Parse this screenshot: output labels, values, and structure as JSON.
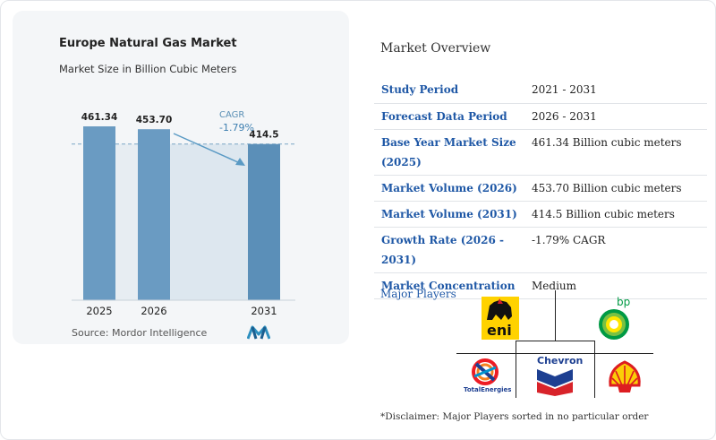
{
  "chart_data": {
    "type": "bar",
    "title": "Europe Natural Gas Market",
    "subtitle": "Market Size in Billion Cubic Meters",
    "categories": [
      "2025",
      "2026",
      "2031"
    ],
    "values": [
      461.34,
      453.7,
      414.5
    ],
    "value_labels": [
      "461.34",
      "453.70",
      "414.5"
    ],
    "ylim": [
      0,
      500
    ],
    "annotation": {
      "label": "CAGR",
      "value": "-1.79%"
    },
    "grid": false,
    "colors": {
      "bar": "#5b8fb8",
      "bar_light": "#6a9bc2",
      "shade": "#dde7ef",
      "arrow": "#5a9ac4"
    }
  },
  "source": "Source: Mordor Intelligence",
  "overview": {
    "heading": "Market Overview",
    "rows": [
      {
        "label": "Study Period",
        "value": "2021 - 2031"
      },
      {
        "label": "Forecast Data Period",
        "value": "2026 - 2031"
      },
      {
        "label": "Base Year Market Size (2025)",
        "value": "461.34 Billion cubic meters"
      },
      {
        "label": "Market Volume (2026)",
        "value": "453.70 Billion cubic meters"
      },
      {
        "label": "Market Volume (2031)",
        "value": "414.5 Billion cubic meters"
      },
      {
        "label": "Growth Rate (2026 - 2031)",
        "value": "-1.79% CAGR"
      },
      {
        "label": "Market Concentration",
        "value": "Medium"
      }
    ]
  },
  "players": {
    "heading": "Major Players",
    "logos": {
      "eni": "eni",
      "bp": "bp",
      "chevron": "Chevron",
      "total": "TotalEnergies",
      "shell": "shell-logo-icon"
    },
    "disclaimer": "*Disclaimer: Major Players sorted in no particular order"
  }
}
